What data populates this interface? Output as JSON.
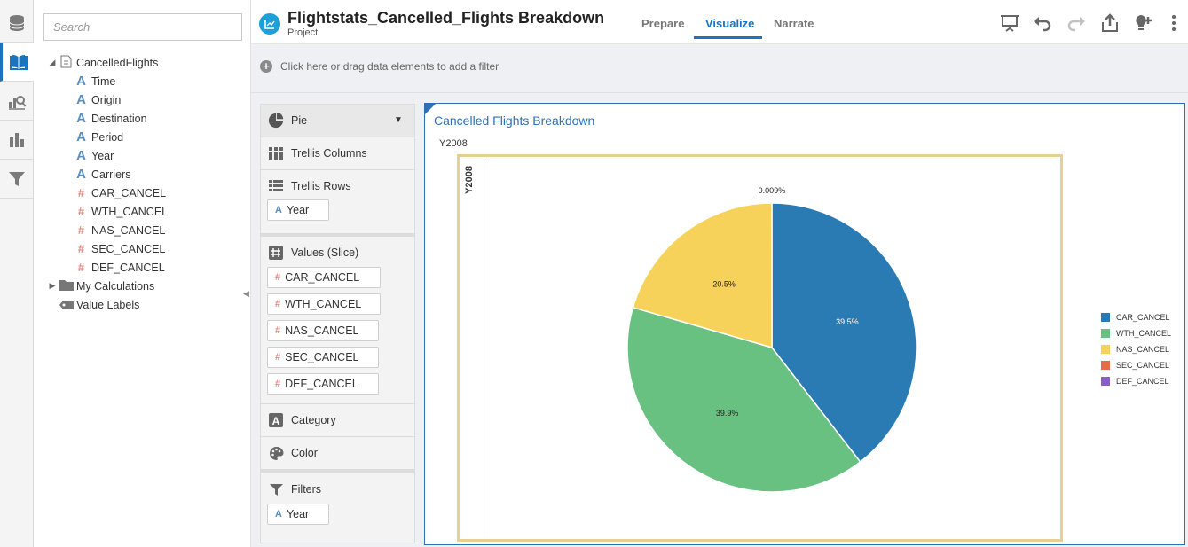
{
  "search": {
    "placeholder": "Search"
  },
  "tree": {
    "root": "CancelledFlights",
    "items": [
      "Time",
      "Origin",
      "Destination",
      "Period",
      "Year",
      "Carriers",
      "CAR_CANCEL",
      "WTH_CANCEL",
      "NAS_CANCEL",
      "SEC_CANCEL",
      "DEF_CANCEL"
    ],
    "calc_folder": "My Calculations",
    "value_labels": "Value Labels"
  },
  "header": {
    "title": "Flightstats_Cancelled_Flights Breakdown",
    "subtitle": "Project",
    "tabs": [
      "Prepare",
      "Visualize",
      "Narrate"
    ]
  },
  "filter_bar": {
    "text": "Click here or drag data elements to add a filter"
  },
  "grammar": {
    "chart_type": "Pie",
    "trellis_columns": "Trellis Columns",
    "trellis_rows": "Trellis Rows",
    "trellis_rows_pill": "Year",
    "values_label": "Values (Slice)",
    "values": [
      "CAR_CANCEL",
      "WTH_CANCEL",
      "NAS_CANCEL",
      "SEC_CANCEL",
      "DEF_CANCEL"
    ],
    "category": "Category",
    "color": "Color",
    "filters": "Filters",
    "filters_pill": "Year"
  },
  "chart_data": {
    "type": "pie",
    "title": "Cancelled Flights Breakdown",
    "trellis_column_label": "Y2008",
    "trellis_row_label": "Y2008",
    "categories": [
      "CAR_CANCEL",
      "WTH_CANCEL",
      "NAS_CANCEL",
      "SEC_CANCEL",
      "DEF_CANCEL"
    ],
    "values": [
      39.5,
      39.9,
      20.5,
      0.009,
      0
    ],
    "labels": [
      "39.5%",
      "39.9%",
      "20.5%",
      "0.009%",
      ""
    ],
    "colors": [
      "#2a7ab4",
      "#68c081",
      "#f7d25a",
      "#e8694a",
      "#8a5fc0"
    ],
    "legend_position": "right"
  }
}
